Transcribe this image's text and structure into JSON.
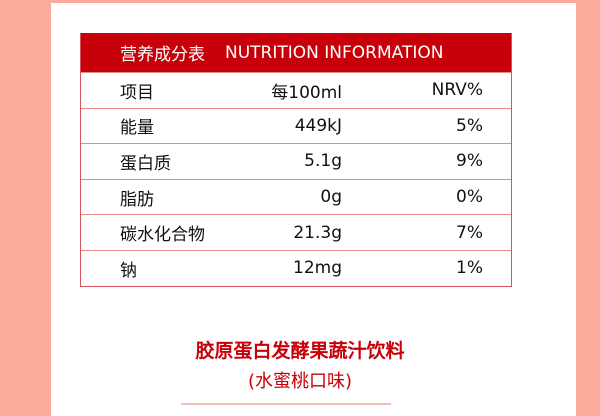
{
  "header": {
    "cn": "营养成分表",
    "en": "NUTRITION INFORMATION"
  },
  "columns": [
    "项目",
    "每100ml",
    "NRV%"
  ],
  "rows": [
    [
      "能量",
      "449kJ",
      "5%"
    ],
    [
      "蛋白质",
      "5.1g",
      "9%"
    ],
    [
      "脂肪",
      "0g",
      "0%"
    ],
    [
      "碳水化合物",
      "21.3g",
      "7%"
    ],
    [
      "钠",
      "12mg",
      "1%"
    ]
  ],
  "product": {
    "name": "胶原蛋白发酵果蔬汁饮料",
    "flavor": "(水蜜桃口味)"
  },
  "colors": {
    "accent": "#c8000a",
    "background": "#fbab9a"
  }
}
